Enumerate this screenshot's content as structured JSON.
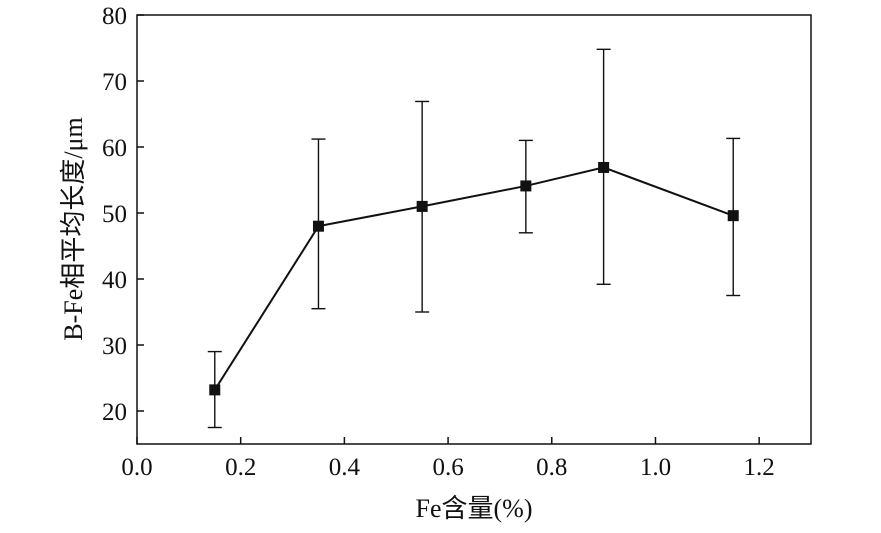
{
  "chart_data": {
    "type": "line",
    "xlabel": "Fe含量(%)",
    "ylabel": "B-Fe相平均长度/μm",
    "xlim": [
      0.0,
      1.3
    ],
    "ylim": [
      15,
      80
    ],
    "xticks": [
      0.0,
      0.2,
      0.4,
      0.6,
      0.8,
      1.0,
      1.2
    ],
    "yticks": [
      20,
      30,
      40,
      50,
      60,
      70,
      80
    ],
    "xtick_labels": [
      "0.0",
      "0.2",
      "0.4",
      "0.6",
      "0.8",
      "1.0",
      "1.2"
    ],
    "ytick_labels": [
      "20",
      "30",
      "40",
      "50",
      "60",
      "70",
      "80"
    ],
    "grid": false,
    "marker": "square",
    "series": [
      {
        "x": [
          0.15,
          0.35,
          0.55,
          0.75,
          0.9,
          1.15
        ],
        "y": [
          23.2,
          48.0,
          51.0,
          54.1,
          56.9,
          49.6
        ],
        "err_low": [
          17.5,
          35.5,
          35.0,
          47.0,
          39.2,
          37.5
        ],
        "err_high": [
          29.0,
          61.2,
          66.9,
          61.0,
          74.8,
          61.3
        ]
      }
    ],
    "colors": {
      "line": "#111111",
      "marker": "#111111",
      "axis": "#111111"
    }
  }
}
